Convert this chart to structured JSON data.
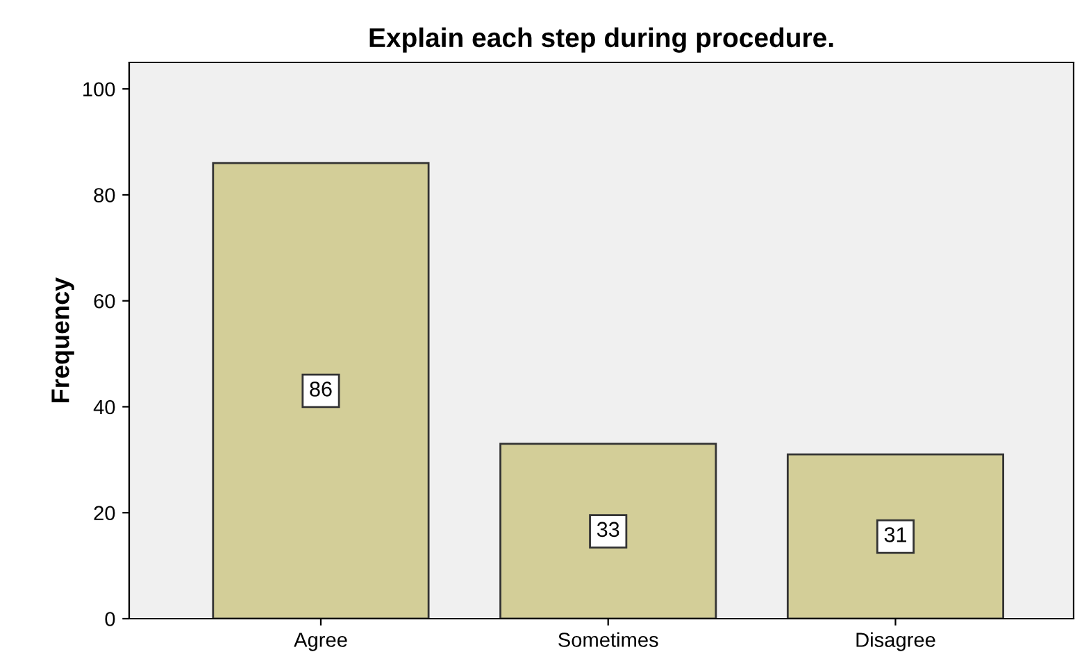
{
  "chart_data": {
    "type": "bar",
    "title": "Explain each step during procedure.",
    "ylabel": "Frequency",
    "categories": [
      "Agree",
      "Sometimes",
      "Disagree"
    ],
    "values": [
      86,
      33,
      31
    ],
    "color": "#d3ce98",
    "ylim": [
      0,
      105
    ],
    "yticks": [
      0,
      20,
      40,
      60,
      80,
      100
    ],
    "grid": false,
    "data_labels": true
  }
}
